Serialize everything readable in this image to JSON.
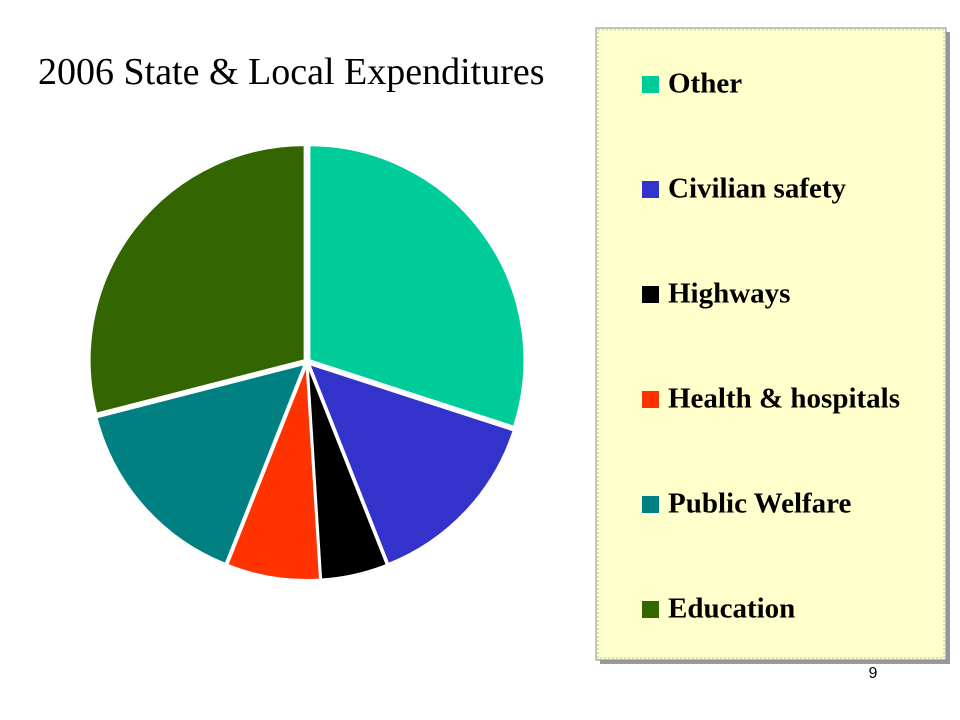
{
  "chart_data": {
    "type": "pie",
    "title": "2006 State & Local Expenditures",
    "categories": [
      "Other",
      "Civilian safety",
      "Highways",
      "Health & hospitals",
      "Public Welfare",
      "Education"
    ],
    "values": [
      30,
      14,
      5,
      7,
      15,
      29
    ],
    "colors": [
      "#00cc99",
      "#3333cc",
      "#000000",
      "#ff3300",
      "#008080",
      "#336600"
    ]
  },
  "page_number": "9"
}
